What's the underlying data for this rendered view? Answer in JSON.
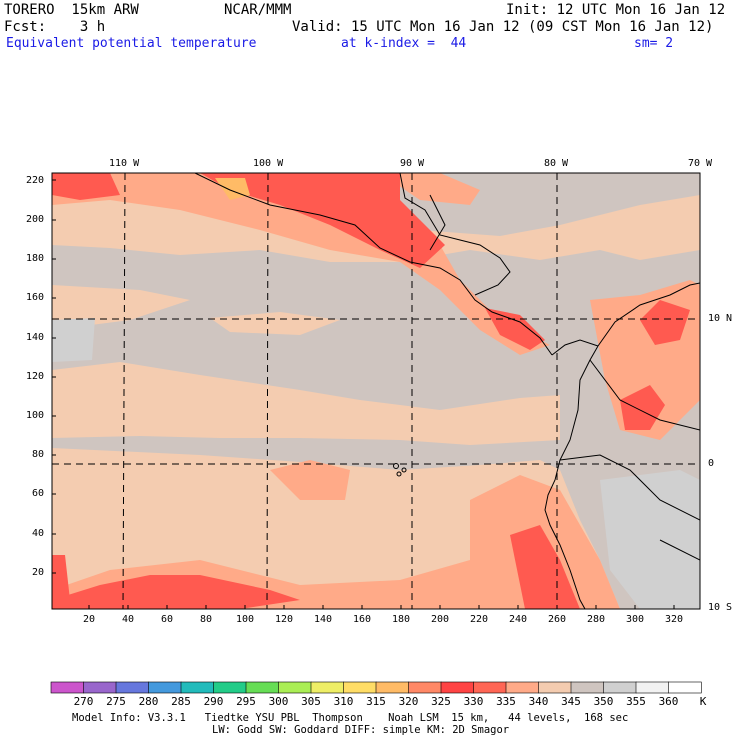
{
  "header": {
    "model": "TORERO  15km ARW",
    "center": "NCAR/MMM",
    "init": "Init: 12 UTC Mon 16 Jan 12",
    "fcst": "Fcst:    3 h",
    "valid": "Valid: 15 UTC Mon 16 Jan 12 (09 CST Mon 16 Jan 12)",
    "field": "Equivalent potential temperature",
    "level": "at k-index =  44",
    "smooth": "sm= 2"
  },
  "map": {
    "lon_labels": [
      "110 W",
      "100 W",
      "90 W",
      "80 W",
      "70 W"
    ],
    "lat_labels": [
      "10 N",
      "0",
      "10 S"
    ],
    "y_ticks": [
      "220",
      "200",
      "180",
      "160",
      "140",
      "120",
      "100",
      "80",
      "60",
      "40",
      "20"
    ],
    "x_ticks": [
      "20",
      "40",
      "60",
      "80",
      "100",
      "120",
      "140",
      "160",
      "180",
      "200",
      "220",
      "240",
      "260",
      "280",
      "300",
      "320"
    ]
  },
  "colorbar": {
    "unit": "K",
    "levels": [
      "270",
      "275",
      "280",
      "285",
      "290",
      "295",
      "300",
      "305",
      "310",
      "315",
      "320",
      "325",
      "330",
      "335",
      "340",
      "345",
      "350",
      "355",
      "360"
    ],
    "colors": [
      "#cc55cc",
      "#9966cc",
      "#6677dd",
      "#4499dd",
      "#22bbbb",
      "#22cc88",
      "#66dd55",
      "#aaee55",
      "#eeee66",
      "#ffdd66",
      "#ffbb66",
      "#ff8866",
      "#ff4444",
      "#ff6655",
      "#ffaa88",
      "#f4ccb0",
      "#cfc5c0",
      "#d0d0d0",
      "#f2f2f2",
      "#ffffff"
    ]
  },
  "footer": {
    "line1": "Model Info: V3.3.1   Tiedtke YSU PBL  Thompson    Noah LSM  15 km,   44 levels,  168 sec",
    "line2": "LW: Godd SW: Goddard DIFF: simple KM: 2D Smagor"
  }
}
